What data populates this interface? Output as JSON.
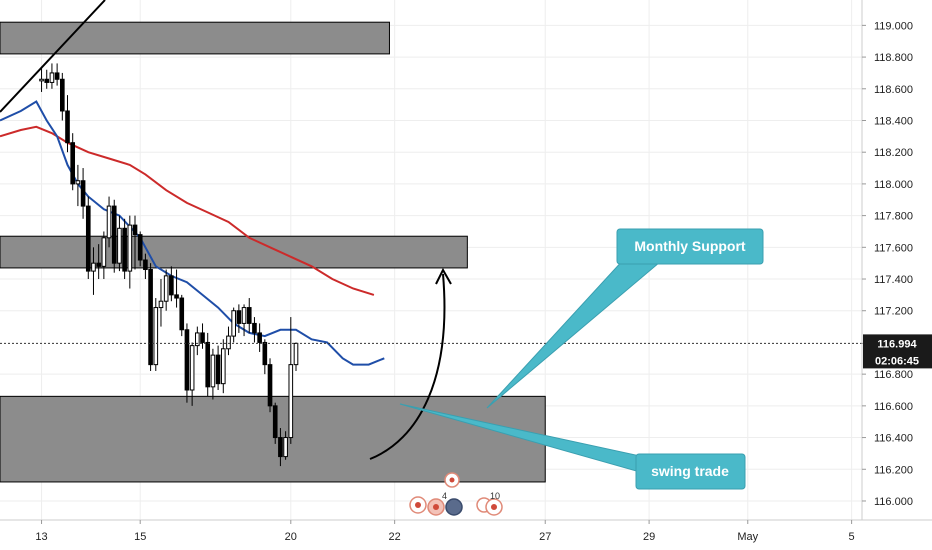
{
  "chart_data": {
    "type": "candlestick",
    "symbol_hint": "",
    "y_axis": {
      "ylim": [
        115.88,
        119.16
      ],
      "ticks": [
        "119.000",
        "118.800",
        "118.600",
        "118.400",
        "118.200",
        "118.000",
        "117.800",
        "117.600",
        "117.400",
        "117.200",
        "116.994",
        "116.800",
        "116.600",
        "116.400",
        "116.200",
        "116.000"
      ]
    },
    "x_axis": {
      "bar_range": [
        -8,
        158
      ],
      "ticks": [
        {
          "label": "13",
          "bar": 0
        },
        {
          "label": "15",
          "bar": 19
        },
        {
          "label": "20",
          "bar": 48
        },
        {
          "label": "22",
          "bar": 68
        },
        {
          "label": "27",
          "bar": 97
        },
        {
          "label": "29",
          "bar": 117
        },
        {
          "label": "May",
          "bar": 136
        },
        {
          "label": "5",
          "bar": 156
        }
      ]
    },
    "last_price": {
      "value": 116.994,
      "label": "116.994",
      "countdown": "02:06:45",
      "color": "#1a1a1a"
    },
    "colors": {
      "up_body": "#ffffff",
      "down_body": "#000000",
      "wick": "#000000",
      "ma_fast": "#1f4ea8",
      "ma_slow": "#cc2a2a",
      "zone_fill": "#8c8c8c",
      "callout": "#4ab9c9",
      "grid": "#eeeeee"
    },
    "candles": [
      [
        118.65,
        118.74,
        118.58,
        118.66
      ],
      [
        118.66,
        118.72,
        118.6,
        118.64
      ],
      [
        118.64,
        118.76,
        118.6,
        118.7
      ],
      [
        118.7,
        118.76,
        118.62,
        118.66
      ],
      [
        118.66,
        118.7,
        118.4,
        118.46
      ],
      [
        118.46,
        118.56,
        118.2,
        118.26
      ],
      [
        118.26,
        118.32,
        117.96,
        118.0
      ],
      [
        118.0,
        118.12,
        117.86,
        118.02
      ],
      [
        118.02,
        118.1,
        117.78,
        117.86
      ],
      [
        117.86,
        117.92,
        117.4,
        117.45
      ],
      [
        117.45,
        117.6,
        117.3,
        117.5
      ],
      [
        117.5,
        117.62,
        117.4,
        117.48
      ],
      [
        117.48,
        117.7,
        117.4,
        117.66
      ],
      [
        117.66,
        117.92,
        117.6,
        117.86
      ],
      [
        117.86,
        117.9,
        117.44,
        117.5
      ],
      [
        117.5,
        117.8,
        117.45,
        117.72
      ],
      [
        117.72,
        117.78,
        117.4,
        117.45
      ],
      [
        117.45,
        117.8,
        117.34,
        117.74
      ],
      [
        117.74,
        117.8,
        117.46,
        117.68
      ],
      [
        117.68,
        117.7,
        117.48,
        117.52
      ],
      [
        117.52,
        117.56,
        117.4,
        117.46
      ],
      [
        117.46,
        117.5,
        116.82,
        116.86
      ],
      [
        116.86,
        117.28,
        116.82,
        117.22
      ],
      [
        117.22,
        117.4,
        117.1,
        117.26
      ],
      [
        117.26,
        117.46,
        117.2,
        117.42
      ],
      [
        117.42,
        117.48,
        117.26,
        117.3
      ],
      [
        117.3,
        117.46,
        117.22,
        117.28
      ],
      [
        117.28,
        117.3,
        117.04,
        117.08
      ],
      [
        117.08,
        117.12,
        116.62,
        116.7
      ],
      [
        116.7,
        117.0,
        116.6,
        116.98
      ],
      [
        116.98,
        117.1,
        116.92,
        117.06
      ],
      [
        117.06,
        117.12,
        116.96,
        117.0
      ],
      [
        117.0,
        117.06,
        116.66,
        116.72
      ],
      [
        116.72,
        116.96,
        116.64,
        116.92
      ],
      [
        116.92,
        116.98,
        116.7,
        116.74
      ],
      [
        116.74,
        117.02,
        116.68,
        116.96
      ],
      [
        116.96,
        117.1,
        116.92,
        117.04
      ],
      [
        117.04,
        117.22,
        117.0,
        117.2
      ],
      [
        117.2,
        117.24,
        117.06,
        117.12
      ],
      [
        117.12,
        117.24,
        117.04,
        117.22
      ],
      [
        117.22,
        117.28,
        117.06,
        117.12
      ],
      [
        117.12,
        117.16,
        117.0,
        117.06
      ],
      [
        117.06,
        117.12,
        116.94,
        117.0
      ],
      [
        117.0,
        117.02,
        116.8,
        116.86
      ],
      [
        116.86,
        116.9,
        116.56,
        116.6
      ],
      [
        116.6,
        116.62,
        116.36,
        116.4
      ],
      [
        116.4,
        116.46,
        116.22,
        116.28
      ],
      [
        116.28,
        116.44,
        116.26,
        116.4
      ],
      [
        116.4,
        117.16,
        116.36,
        116.86
      ],
      [
        116.86,
        117.0,
        116.82,
        116.994
      ]
    ],
    "ma_fast": {
      "name": "",
      "x": [
        -8,
        -4,
        -1,
        1,
        3,
        5,
        7,
        9,
        12,
        15,
        19,
        22,
        25,
        28,
        31,
        34,
        37,
        40,
        43,
        46,
        49,
        52,
        55,
        58,
        60,
        63,
        66
      ],
      "y": [
        118.4,
        118.46,
        118.52,
        118.4,
        118.3,
        118.12,
        118.0,
        117.92,
        117.84,
        117.8,
        117.66,
        117.48,
        117.42,
        117.38,
        117.3,
        117.22,
        117.12,
        117.06,
        117.04,
        117.08,
        117.08,
        117.02,
        117.0,
        116.9,
        116.86,
        116.86,
        116.9
      ]
    },
    "ma_slow": {
      "name": "",
      "x": [
        -8,
        -4,
        -1,
        2,
        5,
        9,
        13,
        17,
        20,
        24,
        28,
        32,
        36,
        40,
        44,
        48,
        52,
        56,
        60,
        64
      ],
      "y": [
        118.3,
        118.34,
        118.36,
        118.32,
        118.26,
        118.2,
        118.16,
        118.12,
        118.06,
        117.96,
        117.88,
        117.82,
        117.76,
        117.66,
        117.6,
        117.54,
        117.48,
        117.4,
        117.34,
        117.3
      ]
    },
    "zones": [
      {
        "bar_from": -8,
        "bar_to": 67,
        "y_from": 118.82,
        "y_to": 119.02
      },
      {
        "bar_from": -8,
        "bar_to": 82,
        "y_from": 117.47,
        "y_to": 117.67
      },
      {
        "bar_from": -8,
        "bar_to": 97,
        "y_from": 116.12,
        "y_to": 116.66
      }
    ],
    "annotations": {
      "monthly_support": "Monthly Support",
      "swing_trade": "swing trade",
      "event_count_a": "4",
      "event_count_b": "10"
    }
  }
}
